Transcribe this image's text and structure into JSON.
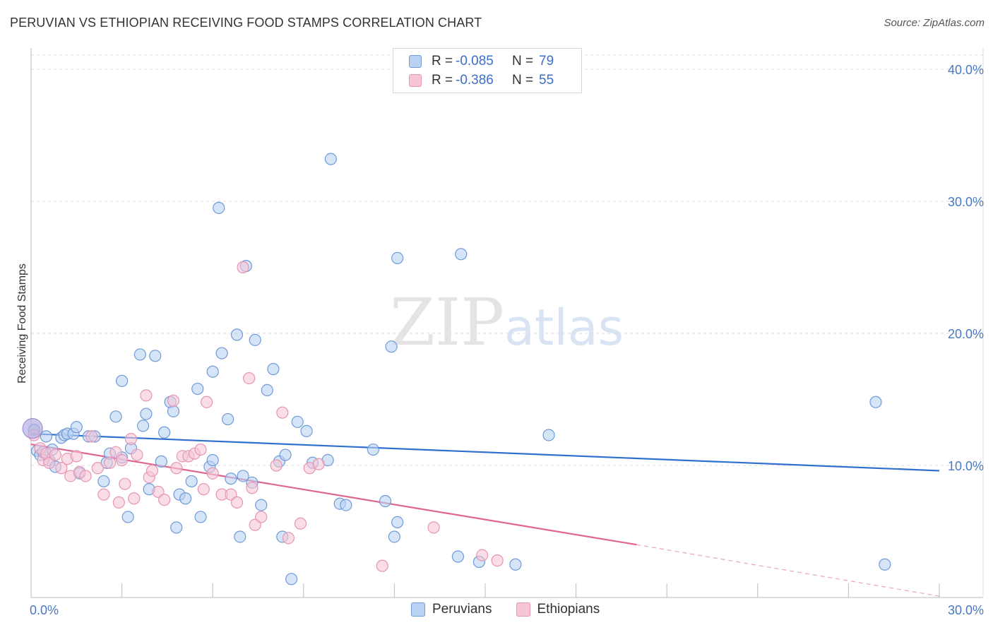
{
  "title": "PERUVIAN VS ETHIOPIAN RECEIVING FOOD STAMPS CORRELATION CHART",
  "source": "Source: ZipAtlas.com",
  "watermark": {
    "zip": "ZIP",
    "atlas": "atlas"
  },
  "legend": {
    "rows": [
      {
        "r_label": "R =",
        "r_value": "-0.085",
        "n_label": "N =",
        "n_value": "79"
      },
      {
        "r_label": "R =",
        "r_value": "-0.386",
        "n_label": "N =",
        "n_value": "55"
      }
    ]
  },
  "bottom_legend": {
    "peruvians": "Peruvians",
    "ethiopians": "Ethiopians"
  },
  "colors": {
    "peruvian_fill": "#b9d2f2",
    "peruvian_stroke": "#6f9ad8",
    "peruvian_line": "#2f6fd0",
    "ethiopian_fill": "#f6c6d6",
    "ethiopian_stroke": "#e695b3",
    "ethiopian_line": "#e0668f",
    "tick_text": "#4a78c2",
    "grid": "#dddddd"
  },
  "chart_data": {
    "type": "scatter",
    "title": "PERUVIAN VS ETHIOPIAN RECEIVING FOOD STAMPS CORRELATION CHART",
    "xlabel": "",
    "ylabel": "Receiving Food Stamps",
    "xlim": [
      0,
      30
    ],
    "ylim": [
      0,
      40
    ],
    "y_ticks": [
      10,
      20,
      30,
      40
    ],
    "y_tick_labels": [
      "10.0%",
      "20.0%",
      "30.0%",
      "40.0%"
    ],
    "x_tick_labels": [
      "0.0%",
      "30.0%"
    ],
    "grid": true,
    "series": [
      {
        "name": "Peruvians",
        "r": -0.085,
        "n": 79,
        "trend": {
          "x0": 0,
          "y0": 12.4,
          "x1": 30,
          "y1": 9.6
        },
        "points": [
          [
            0.1,
            12.7
          ],
          [
            0.2,
            11.1
          ],
          [
            0.3,
            10.8
          ],
          [
            0.4,
            11.0
          ],
          [
            0.5,
            12.2
          ],
          [
            0.6,
            10.4
          ],
          [
            0.7,
            11.2
          ],
          [
            0.8,
            9.9
          ],
          [
            1.0,
            12.1
          ],
          [
            1.1,
            12.3
          ],
          [
            1.2,
            12.4
          ],
          [
            1.4,
            12.4
          ],
          [
            1.5,
            12.9
          ],
          [
            1.6,
            9.4
          ],
          [
            1.9,
            12.2
          ],
          [
            2.1,
            12.2
          ],
          [
            2.4,
            8.8
          ],
          [
            2.5,
            10.2
          ],
          [
            2.6,
            10.9
          ],
          [
            2.8,
            13.7
          ],
          [
            3.0,
            10.6
          ],
          [
            3.0,
            16.4
          ],
          [
            3.2,
            6.1
          ],
          [
            3.3,
            11.3
          ],
          [
            3.6,
            18.4
          ],
          [
            3.7,
            13.0
          ],
          [
            3.8,
            13.9
          ],
          [
            3.9,
            8.2
          ],
          [
            4.1,
            18.3
          ],
          [
            4.3,
            10.3
          ],
          [
            4.4,
            12.5
          ],
          [
            4.6,
            14.8
          ],
          [
            4.7,
            14.1
          ],
          [
            4.8,
            5.3
          ],
          [
            4.9,
            7.8
          ],
          [
            5.1,
            7.5
          ],
          [
            5.3,
            8.8
          ],
          [
            5.5,
            15.8
          ],
          [
            5.6,
            6.1
          ],
          [
            5.9,
            9.9
          ],
          [
            6.0,
            10.4
          ],
          [
            6.0,
            17.1
          ],
          [
            6.2,
            29.5
          ],
          [
            6.3,
            18.5
          ],
          [
            6.5,
            13.5
          ],
          [
            6.6,
            9.0
          ],
          [
            6.8,
            19.9
          ],
          [
            6.9,
            4.6
          ],
          [
            7.0,
            9.2
          ],
          [
            7.1,
            25.1
          ],
          [
            7.3,
            8.7
          ],
          [
            7.4,
            19.5
          ],
          [
            7.6,
            7.0
          ],
          [
            7.8,
            15.7
          ],
          [
            8.0,
            17.3
          ],
          [
            8.2,
            10.3
          ],
          [
            8.3,
            4.6
          ],
          [
            8.4,
            10.8
          ],
          [
            8.6,
            1.4
          ],
          [
            8.8,
            13.3
          ],
          [
            9.1,
            12.6
          ],
          [
            9.3,
            10.2
          ],
          [
            9.8,
            10.4
          ],
          [
            9.9,
            33.2
          ],
          [
            10.2,
            7.1
          ],
          [
            10.4,
            7.0
          ],
          [
            11.3,
            11.2
          ],
          [
            11.7,
            7.3
          ],
          [
            11.9,
            19.0
          ],
          [
            12.0,
            4.6
          ],
          [
            12.1,
            5.7
          ],
          [
            12.1,
            25.7
          ],
          [
            14.1,
            3.1
          ],
          [
            14.2,
            26.0
          ],
          [
            14.8,
            2.7
          ],
          [
            16.0,
            2.5
          ],
          [
            17.1,
            12.3
          ],
          [
            27.9,
            14.8
          ],
          [
            28.2,
            2.5
          ]
        ]
      },
      {
        "name": "Ethiopians",
        "r": -0.386,
        "n": 55,
        "trend": {
          "x0": 0,
          "y0": 11.6,
          "x1": 20,
          "y1": 4.0
        },
        "trend_dashed": {
          "x0": 20,
          "y0": 4.0,
          "x1": 30,
          "y1": 0.1
        },
        "points": [
          [
            0.1,
            12.3
          ],
          [
            0.3,
            11.3
          ],
          [
            0.4,
            10.4
          ],
          [
            0.5,
            10.9
          ],
          [
            0.6,
            10.2
          ],
          [
            0.8,
            10.8
          ],
          [
            1.0,
            9.8
          ],
          [
            1.2,
            10.5
          ],
          [
            1.3,
            9.2
          ],
          [
            1.5,
            10.7
          ],
          [
            1.6,
            9.5
          ],
          [
            1.8,
            9.2
          ],
          [
            2.0,
            12.2
          ],
          [
            2.2,
            9.8
          ],
          [
            2.4,
            7.8
          ],
          [
            2.6,
            10.2
          ],
          [
            2.8,
            11.0
          ],
          [
            2.9,
            7.2
          ],
          [
            3.0,
            10.4
          ],
          [
            3.1,
            8.6
          ],
          [
            3.3,
            12.0
          ],
          [
            3.4,
            7.5
          ],
          [
            3.5,
            10.8
          ],
          [
            3.8,
            15.3
          ],
          [
            3.9,
            9.1
          ],
          [
            4.0,
            9.6
          ],
          [
            4.2,
            8.0
          ],
          [
            4.4,
            7.4
          ],
          [
            4.7,
            14.9
          ],
          [
            4.8,
            9.8
          ],
          [
            5.0,
            10.7
          ],
          [
            5.2,
            10.7
          ],
          [
            5.4,
            10.9
          ],
          [
            5.6,
            11.2
          ],
          [
            5.7,
            8.2
          ],
          [
            5.8,
            14.8
          ],
          [
            6.0,
            9.4
          ],
          [
            6.3,
            7.8
          ],
          [
            6.6,
            7.8
          ],
          [
            6.8,
            7.2
          ],
          [
            7.0,
            25.0
          ],
          [
            7.2,
            16.6
          ],
          [
            7.3,
            8.3
          ],
          [
            7.4,
            5.5
          ],
          [
            7.6,
            6.1
          ],
          [
            8.1,
            10.0
          ],
          [
            8.3,
            14.0
          ],
          [
            8.5,
            4.5
          ],
          [
            8.9,
            5.6
          ],
          [
            9.2,
            9.8
          ],
          [
            9.5,
            10.1
          ],
          [
            11.6,
            2.4
          ],
          [
            13.3,
            5.3
          ],
          [
            14.9,
            3.2
          ],
          [
            15.4,
            2.8
          ]
        ]
      }
    ]
  }
}
